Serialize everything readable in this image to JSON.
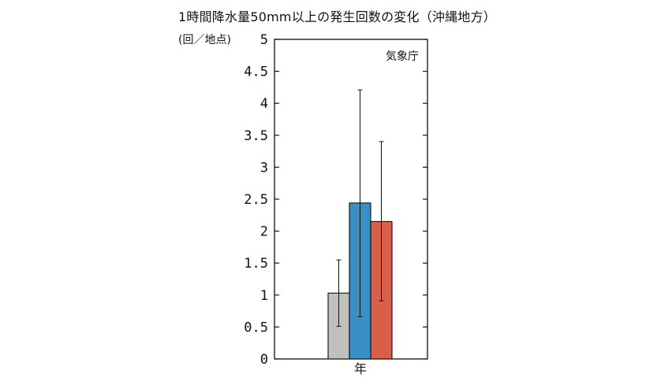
{
  "title": "1時間降水量50mm以上の発生回数の変化（沖縄地方）",
  "unit": "(回／地点)",
  "source": "気象庁",
  "chart_data": {
    "type": "bar",
    "categories": [
      "年"
    ],
    "series": [
      {
        "values": [
          1.03
        ],
        "error_low": [
          0.51
        ],
        "error_high": [
          1.55
        ],
        "color": "#c0c0c0"
      },
      {
        "values": [
          2.44
        ],
        "error_low": [
          0.66
        ],
        "error_high": [
          4.21
        ],
        "color": "#3a8fc4"
      },
      {
        "values": [
          2.15
        ],
        "error_low": [
          0.91
        ],
        "error_high": [
          3.4
        ],
        "color": "#d95f4a"
      }
    ],
    "ylim": [
      0,
      5
    ],
    "yticks": [
      "0",
      "0.5",
      "1",
      "1.5",
      "2",
      "2.5",
      "3",
      "3.5",
      "4",
      "4.5",
      "5"
    ],
    "grid": false
  }
}
